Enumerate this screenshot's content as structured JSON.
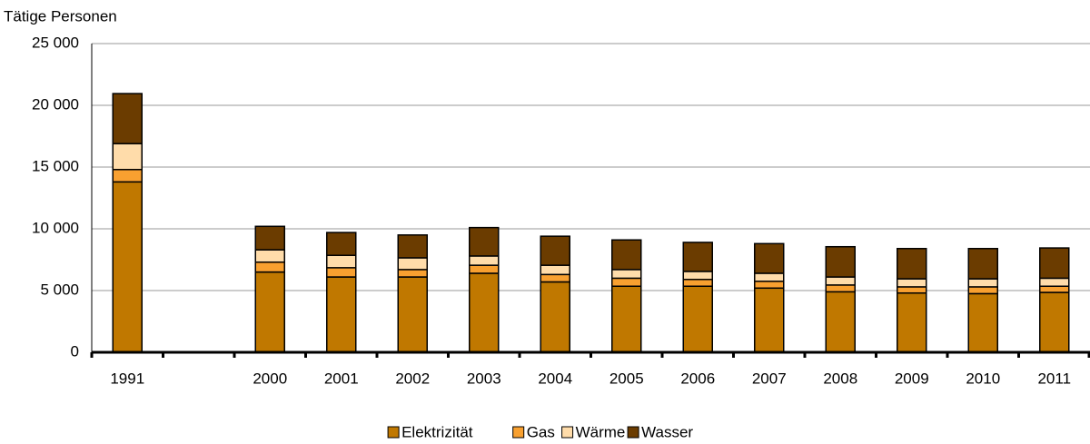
{
  "chart_data": {
    "type": "stacked_bar",
    "y_axis_label": "Tätige Personen",
    "categories": [
      "1991",
      null,
      "2000",
      "2001",
      "2002",
      "2003",
      "2004",
      "2005",
      "2006",
      "2007",
      "2008",
      "2009",
      "2010",
      "2011"
    ],
    "series": [
      {
        "name": "Elektrizität",
        "color": "#c07800",
        "values": [
          13800,
          null,
          6500,
          6100,
          6100,
          6400,
          5700,
          5350,
          5350,
          5200,
          4900,
          4800,
          4750,
          4850
        ]
      },
      {
        "name": "Gas",
        "color": "#f8a030",
        "values": [
          1000,
          null,
          800,
          750,
          600,
          650,
          600,
          650,
          550,
          550,
          550,
          500,
          550,
          500
        ]
      },
      {
        "name": "Wärme",
        "color": "#ffdcaa",
        "values": [
          2100,
          null,
          1000,
          1000,
          950,
          750,
          750,
          700,
          650,
          650,
          650,
          650,
          650,
          650
        ]
      },
      {
        "name": "Wasser",
        "color": "#6b3c00",
        "values": [
          4050,
          null,
          1900,
          1850,
          1850,
          2300,
          2350,
          2400,
          2350,
          2400,
          2450,
          2450,
          2450,
          2450
        ]
      }
    ],
    "ylim": [
      0,
      25000
    ],
    "yticks": [
      0,
      {
        "value": 5000,
        "label": "5 000"
      },
      {
        "value": 10000,
        "label": "10 000"
      },
      {
        "value": 15000,
        "label": "15 000"
      },
      {
        "value": 20000,
        "label": "20 000"
      },
      {
        "value": 25000,
        "label": "25 000"
      }
    ],
    "grid": true
  }
}
